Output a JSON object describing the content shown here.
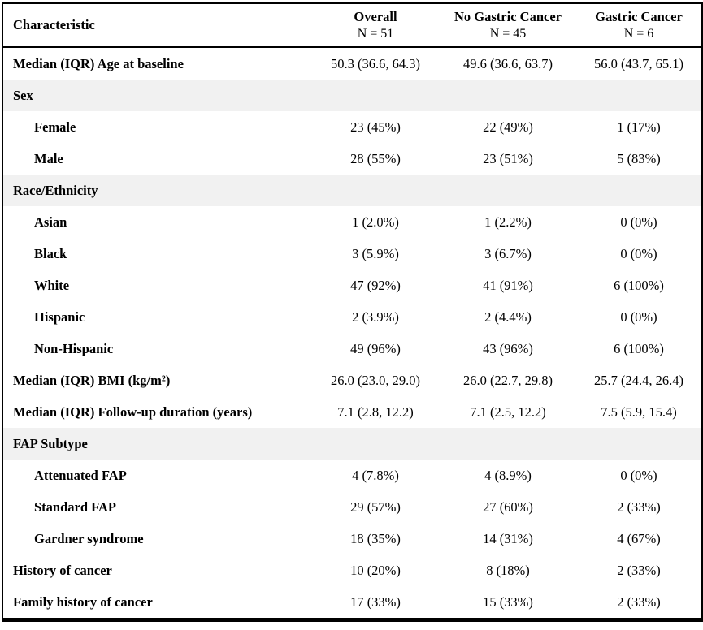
{
  "colors": {
    "border": "#000000",
    "section_row_background": "#f1f1f1",
    "text": "#000000",
    "page_background": "#ffffff"
  },
  "table": {
    "header": {
      "characteristic": "Characteristic",
      "columns": [
        {
          "title": "Overall",
          "n": "N = 51"
        },
        {
          "title": "No Gastric Cancer",
          "n": "N = 45"
        },
        {
          "title": "Gastric Cancer",
          "n": "N = 6"
        }
      ]
    },
    "rows": [
      {
        "label": "Median (IQR) Age at baseline",
        "indent": false,
        "section": false,
        "values": [
          "50.3 (36.6, 64.3)",
          "49.6 (36.6, 63.7)",
          "56.0 (43.7, 65.1)"
        ]
      },
      {
        "label": "Sex",
        "indent": false,
        "section": true,
        "values": []
      },
      {
        "label": "Female",
        "indent": true,
        "section": false,
        "values": [
          "23 (45%)",
          "22 (49%)",
          "1 (17%)"
        ]
      },
      {
        "label": "Male",
        "indent": true,
        "section": false,
        "values": [
          "28 (55%)",
          "23 (51%)",
          "5 (83%)"
        ]
      },
      {
        "label": "Race/Ethnicity",
        "indent": false,
        "section": true,
        "values": []
      },
      {
        "label": "Asian",
        "indent": true,
        "section": false,
        "values": [
          "1 (2.0%)",
          "1 (2.2%)",
          "0 (0%)"
        ]
      },
      {
        "label": "Black",
        "indent": true,
        "section": false,
        "values": [
          "3 (5.9%)",
          "3 (6.7%)",
          "0 (0%)"
        ]
      },
      {
        "label": "White",
        "indent": true,
        "section": false,
        "values": [
          "47 (92%)",
          "41 (91%)",
          "6 (100%)"
        ]
      },
      {
        "label": "Hispanic",
        "indent": true,
        "section": false,
        "values": [
          "2 (3.9%)",
          "2 (4.4%)",
          "0 (0%)"
        ]
      },
      {
        "label": "Non-Hispanic",
        "indent": true,
        "section": false,
        "values": [
          "49 (96%)",
          "43 (96%)",
          "6 (100%)"
        ]
      },
      {
        "label": "Median (IQR) BMI (kg/m²)",
        "indent": false,
        "section": false,
        "values": [
          "26.0 (23.0, 29.0)",
          "26.0 (22.7, 29.8)",
          "25.7 (24.4, 26.4)"
        ]
      },
      {
        "label": "Median (IQR) Follow-up duration (years)",
        "indent": false,
        "section": false,
        "values": [
          "7.1 (2.8, 12.2)",
          "7.1 (2.5, 12.2)",
          "7.5 (5.9, 15.4)"
        ]
      },
      {
        "label": "FAP Subtype",
        "indent": false,
        "section": true,
        "values": []
      },
      {
        "label": "Attenuated FAP",
        "indent": true,
        "section": false,
        "values": [
          "4 (7.8%)",
          "4 (8.9%)",
          "0 (0%)"
        ]
      },
      {
        "label": "Standard FAP",
        "indent": true,
        "section": false,
        "values": [
          "29 (57%)",
          "27 (60%)",
          "2 (33%)"
        ]
      },
      {
        "label": "Gardner syndrome",
        "indent": true,
        "section": false,
        "values": [
          "18 (35%)",
          "14 (31%)",
          "4 (67%)"
        ]
      },
      {
        "label": "History of cancer",
        "indent": false,
        "section": false,
        "values": [
          "10 (20%)",
          "8 (18%)",
          "2 (33%)"
        ]
      },
      {
        "label": "Family history of cancer",
        "indent": false,
        "section": false,
        "values": [
          "17 (33%)",
          "15 (33%)",
          "2 (33%)"
        ]
      }
    ]
  }
}
